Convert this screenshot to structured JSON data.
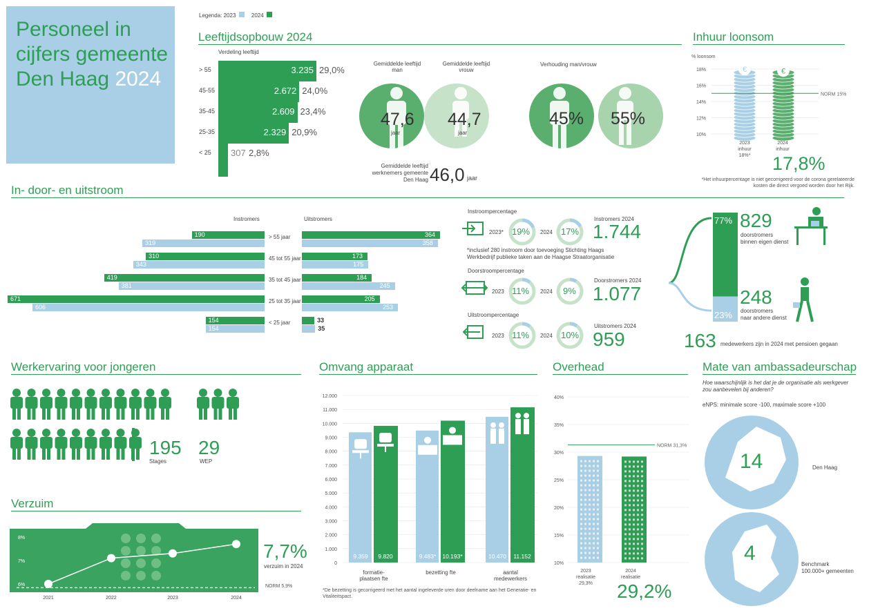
{
  "header": {
    "title_line1": "Personeel in",
    "title_line2": "cijfers gemeente",
    "title_line3": "Den Haag",
    "title_year": "2024",
    "legend_label": "Legenda:",
    "legend_2023": "2023",
    "legend_2024": "2024"
  },
  "colors": {
    "green": "#2e9e55",
    "blue": "#a9cfe6",
    "lightgreen": "#c6e3c9"
  },
  "age": {
    "section": "Leeftijdsopbouw 2024",
    "subtitle": "Verdeling leeftijd",
    "rows": [
      {
        "label": "> 55",
        "value": "3.235",
        "pct": "29,0%",
        "n": 3235
      },
      {
        "label": "45-55",
        "value": "2.672",
        "pct": "24,0%",
        "n": 2672
      },
      {
        "label": "35-45",
        "value": "2.609",
        "pct": "23,4%",
        "n": 2609
      },
      {
        "label": "25-35",
        "value": "2.329",
        "pct": "20,9%",
        "n": 2329
      },
      {
        "label": "< 25",
        "value": "307",
        "pct": "2,8%",
        "n": 307
      }
    ],
    "man_label": "Gemiddelde leeftijd man",
    "vrouw_label": "Gemiddelde leeftijd vrouw",
    "man_value": "47,6",
    "vrouw_value": "44,7",
    "unit": "jaar",
    "ratio_label": "Verhouding man/vrouw",
    "ratio_man": "45%",
    "ratio_vrouw": "55%",
    "avg_label": "Gemiddelde leeftijd werknemers gemeente Den Haag",
    "avg_value": "46,0",
    "avg_unit": "jaar"
  },
  "inhuur": {
    "section": "Inhuur loonsom",
    "axis_label": "% loonsom",
    "ticks": [
      "18%",
      "16%",
      "14%",
      "12%",
      "10%"
    ],
    "norm": "NORM 15%",
    "norm_value": 15,
    "col2023_label": "2023",
    "col2023_sub": "inhuur",
    "col2023_value": "18%*",
    "col2024_label": "2024",
    "col2024_sub": "inhuur",
    "col2024_value": "17,8%",
    "values": [
      18,
      17.8
    ],
    "footnote": "*Het inhuurpercentage is niet gecorrigeerd voor de corona gerelateerde kosten die direct vergoed worden door het Rijk."
  },
  "flow": {
    "section": "In- door- en uitstroom",
    "instromers": "Instromers",
    "uitstromers": "Uitstromers",
    "rows": [
      {
        "label": "> 55 jaar",
        "in2024": "190",
        "in2023": "319",
        "out2024": "364",
        "out2023": "358",
        "i24": 190,
        "i23": 319,
        "o24": 364,
        "o23": 358
      },
      {
        "label": "45 tot 55 jaar",
        "in2024": "310",
        "in2023": "343",
        "out2024": "173",
        "out2023": "175",
        "i24": 310,
        "i23": 343,
        "o24": 173,
        "o23": 175
      },
      {
        "label": "35 tot 45 jaar",
        "in2024": "419",
        "in2023": "381",
        "out2024": "184",
        "out2023": "245",
        "i24": 419,
        "i23": 381,
        "o24": 184,
        "o23": 245
      },
      {
        "label": "25 tot 35 jaar",
        "in2024": "671",
        "in2023": "606",
        "out2024": "205",
        "out2023": "253",
        "i24": 671,
        "i23": 606,
        "o24": 205,
        "o23": 253
      },
      {
        "label": "< 25 jaar",
        "in2024": "154",
        "in2023": "154",
        "out2024": "33",
        "out2023": "35",
        "i24": 154,
        "i23": 154,
        "o24": 33,
        "o23": 35
      }
    ],
    "instroom_title": "Instroompercentage",
    "instroom_2023_label": "2023*",
    "instroom_2023": "19%",
    "instroom_2024_label": "2024",
    "instroom_2024": "17%",
    "instromers_label": "Instromers 2024",
    "instromers_value": "1.744",
    "instroom_note": "*inclusief 280 instroom door toevoeging Stichting Haags Werkbedrijf publieke taken aan de Haagse Straatorganisatie",
    "door_title": "Doorstroompercentage",
    "door_2023_label": "2023",
    "door_2023": "11%",
    "door_2024_label": "2024",
    "door_2024": "9%",
    "doorstromers_label": "Doorstromers 2024",
    "doorstromers_value": "1.077",
    "uit_title": "Uitstroompercentage",
    "uit_2023_label": "2023",
    "uit_2023": "11%",
    "uit_2024_label": "2024",
    "uit_2024": "10%",
    "uitstromers_label": "Uitstromers 2024",
    "uitstromers_value": "959",
    "pct_77": "77%",
    "pct_23": "23%",
    "own_value": "829",
    "own_label1": "doorstromers",
    "own_label2": "binnen eigen dienst",
    "other_value": "248",
    "other_label1": "doorstromers",
    "other_label2": "naar andere dienst",
    "pension_value": "163",
    "pension_label": "medewerkers zijn in 2024 met  pensioen gegaan"
  },
  "jongeren": {
    "section": "Werkervaring voor jongeren",
    "stages_value": "195",
    "stages_label": "Stages",
    "wep_value": "29",
    "wep_label": "WEP"
  },
  "verzuim": {
    "section": "Verzuim",
    "ticks": [
      "8%",
      "7%",
      "6%"
    ],
    "years": [
      "2021",
      "2022",
      "2023",
      "2024"
    ],
    "values": [
      6.0,
      7.1,
      7.3,
      7.7
    ],
    "value": "7,7%",
    "value_label": "verzuim in 2024",
    "norm": "NORM 5,9%"
  },
  "omvang": {
    "section": "Omvang apparaat",
    "ticks": [
      "12.000",
      "11.000",
      "10.000",
      "9.000",
      "8.000",
      "7.000",
      "6.000",
      "5.000",
      "4.000",
      "3.000",
      "2.000",
      "1.000",
      "0"
    ],
    "groups": [
      {
        "label1": "formatie-",
        "label2": "plaatsen fte",
        "v2023": "9.359",
        "v2024": "9.820",
        "n2023": 9359,
        "n2024": 9820
      },
      {
        "label1": "bezetting  fte",
        "label2": "",
        "v2023": "9.483*",
        "v2024": "10.193*",
        "n2023": 9483,
        "n2024": 10193
      },
      {
        "label1": "aantal",
        "label2": "medewerkers",
        "v2023": "10.470",
        "v2024": "11.152",
        "n2023": 10470,
        "n2024": 11152
      }
    ],
    "footnote": "*De bezetting is gecorrigeerd met het aantal ingeleverde uren door deelname aan het Generatie- en Vitaliteitspact."
  },
  "overhead": {
    "section": "Overhead",
    "ticks": [
      "40%",
      "35%",
      "30%",
      "25%",
      "20%",
      "15%",
      "10%"
    ],
    "norm": "NORM 31,3%",
    "norm_value": 31.3,
    "values": [
      29.3,
      29.2
    ],
    "c2023_1": "2023",
    "c2023_2": "realisatie",
    "c2023_3": "29,3%",
    "c2024_1": "2024",
    "c2024_2": "realisatie",
    "c2024_value": "29,2%"
  },
  "ambassadeur": {
    "section": "Mate van ambassadeurschap",
    "question": "Hoe waarschijnlijk is het dat je de organisatie als werkgever zou aanbevelen bij anderen?",
    "enps": "eNPS: minimale score -100, maximale score +100",
    "denhaag_value": "14",
    "denhaag_label": "Den Haag",
    "bench_value": "4",
    "bench_label1": "Benchmark",
    "bench_label2": "100.000+ gemeenten"
  }
}
